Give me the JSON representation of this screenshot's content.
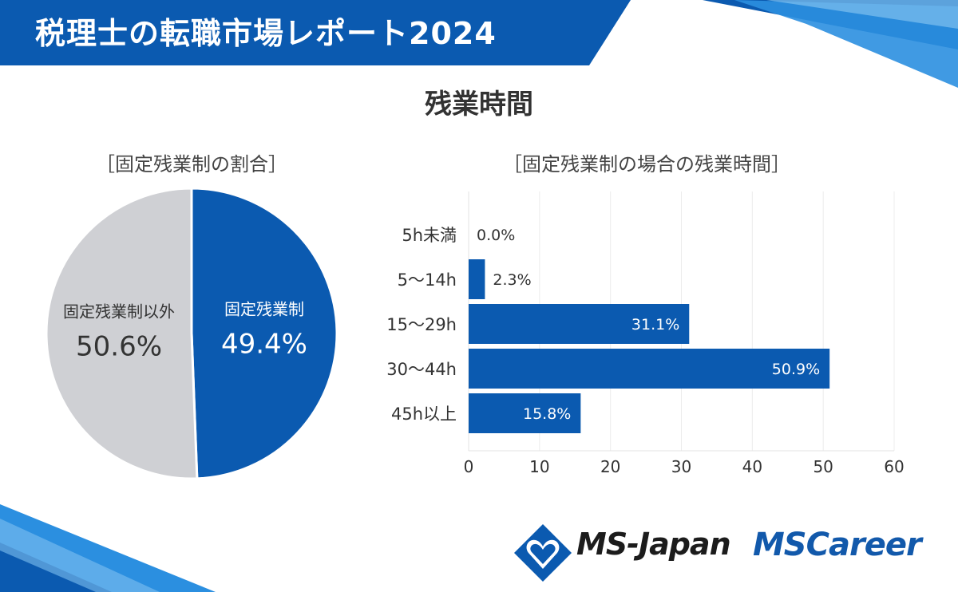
{
  "header": {
    "title": "税理士の転職市場レポート2024",
    "main_title": "残業時間"
  },
  "colors": {
    "brand_blue": "#0b5ab0",
    "light_blue": "#1f8ee0",
    "pie_gray": "#cfd0d4",
    "white": "#ffffff"
  },
  "chart_data": [
    {
      "type": "pie",
      "title": "［固定残業制の割合］",
      "slices": [
        {
          "label": "固定残業制",
          "value": 49.4,
          "value_label": "49.4%",
          "color": "#0b5ab0"
        },
        {
          "label": "固定残業制以外",
          "value": 50.6,
          "value_label": "50.6%",
          "color": "#cfd0d4"
        }
      ]
    },
    {
      "type": "bar",
      "orientation": "horizontal",
      "title": "［固定残業制の場合の残業時間］",
      "categories": [
        "5h未満",
        "5～14h",
        "15～29h",
        "30～44h",
        "45h以上"
      ],
      "values": [
        0.0,
        2.3,
        31.1,
        50.9,
        15.8
      ],
      "value_labels": [
        "0.0%",
        "2.3%",
        "31.1%",
        "50.9%",
        "15.8%"
      ],
      "xlim": [
        0,
        60
      ],
      "xticks": [
        "0",
        "10",
        "20",
        "30",
        "40",
        "50",
        "60"
      ],
      "color": "#0b5ab0"
    }
  ],
  "footer": {
    "logo1": "MS-Japan",
    "logo2": "MSCareer"
  }
}
